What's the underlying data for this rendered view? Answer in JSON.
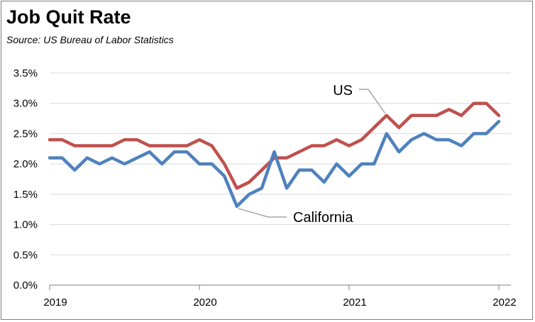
{
  "chart_data": {
    "type": "line",
    "title": "Job Quit Rate",
    "subtitle": "Source:  US Bureau of Labor Statistics",
    "xlabel": "",
    "ylabel": "",
    "ylim": [
      0,
      3.5
    ],
    "y_ticks": [
      {
        "value": 0.0,
        "label": "0.0%"
      },
      {
        "value": 0.5,
        "label": "0.5%"
      },
      {
        "value": 1.0,
        "label": "1.0%"
      },
      {
        "value": 1.5,
        "label": "1.5%"
      },
      {
        "value": 2.0,
        "label": "2.0%"
      },
      {
        "value": 2.5,
        "label": "2.5%"
      },
      {
        "value": 3.0,
        "label": "3.0%"
      },
      {
        "value": 3.5,
        "label": "3.5%"
      }
    ],
    "x_ticks": [
      {
        "value": 0,
        "label": "2019"
      },
      {
        "value": 12,
        "label": "2020"
      },
      {
        "value": 24,
        "label": "2021"
      },
      {
        "value": 36,
        "label": "2022"
      }
    ],
    "xlim": [
      0,
      36
    ],
    "grid": true,
    "x": [
      0,
      1,
      2,
      3,
      4,
      5,
      6,
      7,
      8,
      9,
      10,
      11,
      12,
      13,
      14,
      15,
      16,
      17,
      18,
      19,
      20,
      21,
      22,
      23,
      24,
      25,
      26,
      27,
      28,
      29,
      30,
      31,
      32,
      33,
      34,
      35,
      36
    ],
    "series": [
      {
        "name": "US",
        "color": "#c0504d",
        "values": [
          2.4,
          2.4,
          2.3,
          2.3,
          2.3,
          2.3,
          2.4,
          2.4,
          2.3,
          2.3,
          2.3,
          2.3,
          2.4,
          2.3,
          2.0,
          1.6,
          1.7,
          1.9,
          2.1,
          2.1,
          2.2,
          2.3,
          2.3,
          2.4,
          2.3,
          2.4,
          2.6,
          2.8,
          2.6,
          2.8,
          2.8,
          2.8,
          2.9,
          2.8,
          3.0,
          3.0,
          2.8
        ]
      },
      {
        "name": "California",
        "color": "#4f81bd",
        "values": [
          2.1,
          2.1,
          1.9,
          2.1,
          2.0,
          2.1,
          2.0,
          2.1,
          2.2,
          2.0,
          2.2,
          2.2,
          2.0,
          2.0,
          1.8,
          1.3,
          1.5,
          1.6,
          2.2,
          1.6,
          1.9,
          1.9,
          1.7,
          2.0,
          1.8,
          2.0,
          2.0,
          2.5,
          2.2,
          2.4,
          2.5,
          2.4,
          2.4,
          2.3,
          2.5,
          2.5,
          2.7
        ]
      }
    ],
    "annotations": [
      {
        "text": "US",
        "series": "US",
        "x": 27
      },
      {
        "text": "California",
        "series": "California",
        "x": 15
      }
    ]
  }
}
